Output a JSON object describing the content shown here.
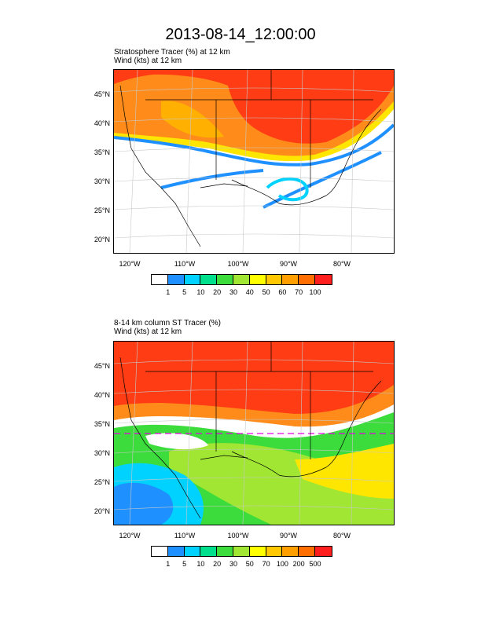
{
  "title": "2013-08-14_12:00:00",
  "panels": [
    {
      "title_line1": "Stratosphere Tracer   (%)    at   12 km",
      "title_line2": "Wind   (kts)    at   12 km",
      "lat_labels": [
        "45°N",
        "40°N",
        "35°N",
        "30°N",
        "25°N",
        "20°N"
      ],
      "lon_labels": [
        "120°W",
        "110°W",
        "100°W",
        "90°W",
        "80°W"
      ],
      "colorbar": {
        "colors": [
          "#ffffff",
          "#1e90ff",
          "#00d2ff",
          "#00e08c",
          "#3cdc3c",
          "#a0e632",
          "#ffff00",
          "#ffc800",
          "#ffa000",
          "#ff6e00",
          "#ff1e1e"
        ],
        "labels": [
          "1",
          "5",
          "10",
          "20",
          "30",
          "40",
          "50",
          "60",
          "70",
          "100"
        ]
      }
    },
    {
      "title_line1": "8-14 km column ST Tracer   (%)",
      "title_line2": "Wind   (kts)    at   12 km",
      "lat_labels": [
        "45°N",
        "40°N",
        "35°N",
        "30°N",
        "25°N",
        "20°N"
      ],
      "lon_labels": [
        "120°W",
        "110°W",
        "100°W",
        "90°W",
        "80°W"
      ],
      "colorbar": {
        "colors": [
          "#ffffff",
          "#1e90ff",
          "#00d2ff",
          "#00e08c",
          "#3cdc3c",
          "#a0e632",
          "#ffff00",
          "#ffc800",
          "#ffa000",
          "#ff6e00",
          "#ff1e1e"
        ],
        "labels": [
          "1",
          "5",
          "10",
          "20",
          "30",
          "50",
          "70",
          "100",
          "200",
          "500"
        ]
      }
    }
  ]
}
